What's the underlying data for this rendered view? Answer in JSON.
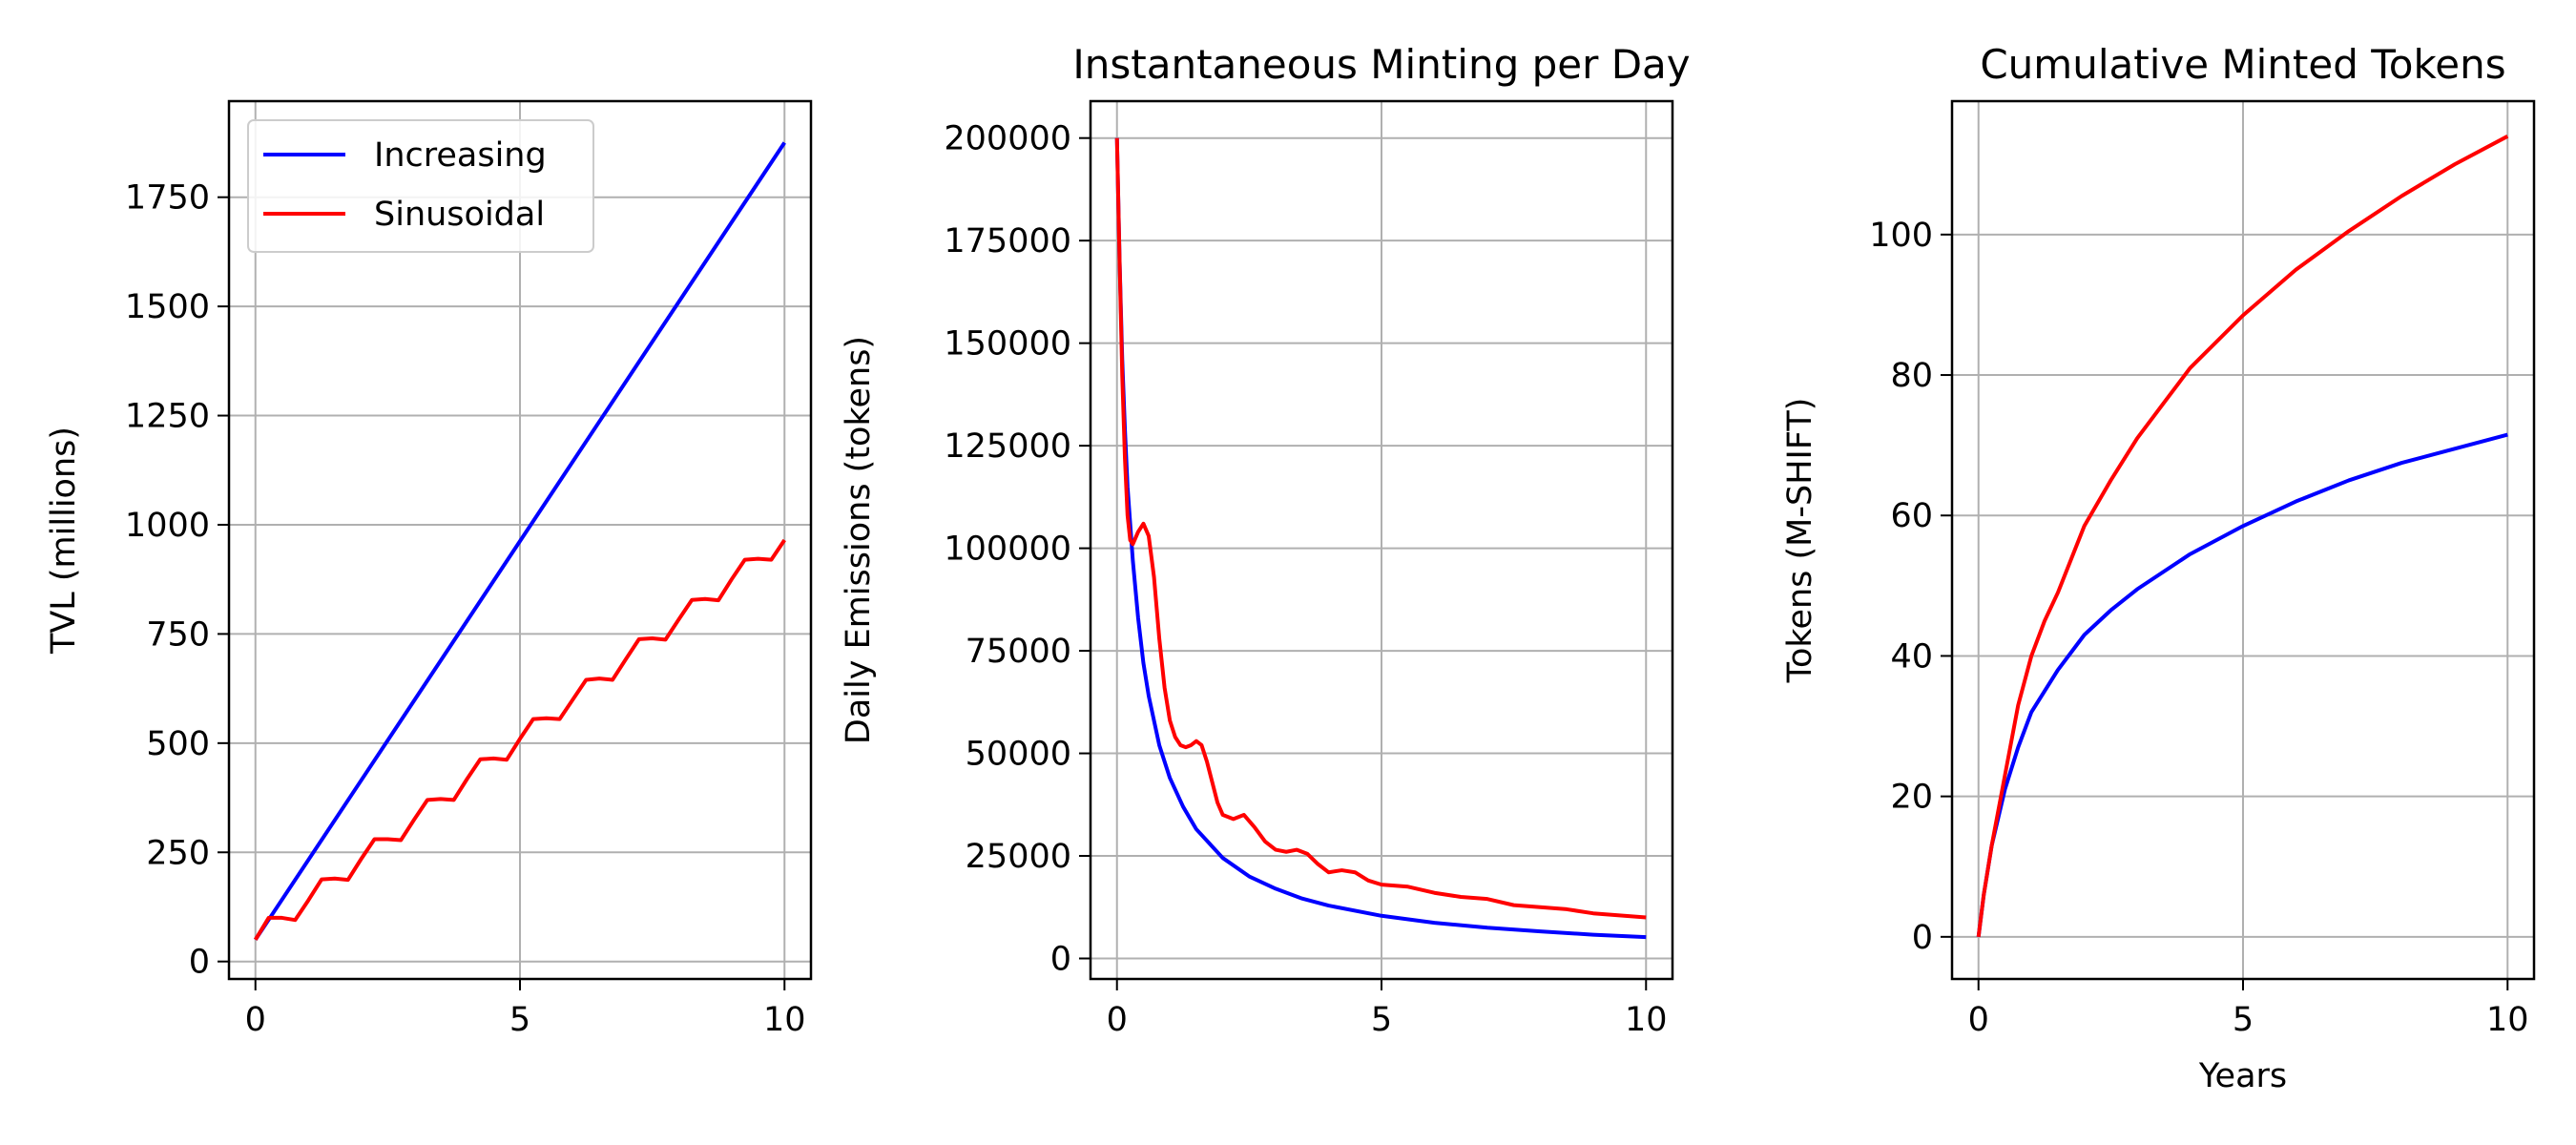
{
  "figure": {
    "background": "#ffffff"
  },
  "chart_data": [
    {
      "type": "line",
      "title": "",
      "xlabel": "",
      "ylabel": "TVL (millions)",
      "xlim": [
        -0.5,
        10.5
      ],
      "ylim": [
        -40,
        1970
      ],
      "xticks": [
        0,
        5,
        10
      ],
      "xtick_labels": [
        "0",
        "5",
        "10"
      ],
      "yticks": [
        0,
        250,
        500,
        750,
        1000,
        1250,
        1500,
        1750
      ],
      "ytick_labels": [
        "0",
        "250",
        "500",
        "750",
        "1000",
        "1250",
        "1500",
        "1750"
      ],
      "grid": true,
      "legend": {
        "location": "upper left",
        "entries": [
          "Increasing",
          "Sinusoidal"
        ]
      },
      "series": [
        {
          "name": "Increasing",
          "color": "#0000ff",
          "x": [
            0,
            10
          ],
          "y": [
            50,
            1875
          ]
        },
        {
          "name": "Sinusoidal",
          "color": "#ff0000",
          "x": [
            0,
            0.25,
            0.5,
            0.75,
            1,
            1.25,
            1.5,
            1.75,
            2,
            2.25,
            2.5,
            2.75,
            3,
            3.25,
            3.5,
            3.75,
            4,
            4.25,
            4.5,
            4.75,
            5,
            5.25,
            5.5,
            5.75,
            6,
            6.25,
            6.5,
            6.75,
            7,
            7.25,
            7.5,
            7.75,
            8,
            8.25,
            8.5,
            8.75,
            9,
            9.25,
            9.5,
            9.75,
            10
          ],
          "y": [
            50,
            100,
            100,
            95,
            140,
            188,
            190,
            187,
            235,
            280,
            280,
            278,
            325,
            370,
            372,
            370,
            418,
            463,
            465,
            462,
            510,
            555,
            557,
            555,
            600,
            645,
            648,
            645,
            692,
            738,
            740,
            737,
            783,
            828,
            830,
            827,
            875,
            920,
            922,
            920,
            965
          ]
        }
      ]
    },
    {
      "type": "line",
      "title": "Instantaneous Minting per Day",
      "xlabel": "",
      "ylabel": "Daily Emissions (tokens)",
      "xlim": [
        -0.5,
        10.5
      ],
      "ylim": [
        -5000,
        209000
      ],
      "xticks": [
        0,
        5,
        10
      ],
      "xtick_labels": [
        "0",
        "5",
        "10"
      ],
      "yticks": [
        0,
        25000,
        50000,
        75000,
        100000,
        125000,
        150000,
        175000,
        200000
      ],
      "ytick_labels": [
        "0",
        "25000",
        "50000",
        "75000",
        "100000",
        "125000",
        "150000",
        "175000",
        "200000"
      ],
      "grid": true,
      "series": [
        {
          "name": "Increasing",
          "color": "#0000ff",
          "x": [
            0,
            0.05,
            0.1,
            0.15,
            0.2,
            0.3,
            0.4,
            0.5,
            0.6,
            0.8,
            1,
            1.25,
            1.5,
            2,
            2.5,
            3,
            3.5,
            4,
            5,
            6,
            7,
            8,
            9,
            10
          ],
          "y": [
            200000,
            170000,
            146000,
            129000,
            115000,
            97000,
            83000,
            72000,
            64000,
            52000,
            44000,
            37000,
            31500,
            24500,
            20000,
            17000,
            14600,
            12900,
            10400,
            8700,
            7500,
            6600,
            5800,
            5200
          ]
        },
        {
          "name": "Sinusoidal",
          "color": "#ff0000",
          "x": [
            0,
            0.05,
            0.1,
            0.15,
            0.2,
            0.25,
            0.3,
            0.4,
            0.5,
            0.6,
            0.7,
            0.8,
            0.9,
            1,
            1.1,
            1.2,
            1.3,
            1.4,
            1.5,
            1.6,
            1.7,
            1.8,
            1.9,
            2,
            2.2,
            2.4,
            2.6,
            2.8,
            3,
            3.2,
            3.4,
            3.6,
            3.8,
            4,
            4.25,
            4.5,
            4.75,
            5,
            5.5,
            6,
            6.5,
            7,
            7.5,
            8,
            8.5,
            9,
            9.5,
            10
          ],
          "y": [
            200000,
            170000,
            142000,
            122000,
            108000,
            102000,
            101000,
            104000,
            106000,
            103000,
            93000,
            78000,
            66000,
            58000,
            54000,
            52000,
            51500,
            52000,
            53000,
            52000,
            48000,
            43000,
            38000,
            35000,
            34000,
            35000,
            32000,
            28500,
            26500,
            26000,
            26500,
            25500,
            23000,
            21000,
            21500,
            21000,
            19000,
            18000,
            17500,
            16000,
            15000,
            14500,
            13000,
            12500,
            12000,
            11000,
            10500,
            10000
          ]
        }
      ]
    },
    {
      "type": "line",
      "title": "Cumulative Minted Tokens",
      "xlabel": "Years",
      "ylabel": "Tokens (M-SHIFT)",
      "xlim": [
        -0.5,
        10.5
      ],
      "ylim": [
        -6,
        119
      ],
      "xticks": [
        0,
        5,
        10
      ],
      "xtick_labels": [
        "0",
        "5",
        "10"
      ],
      "yticks": [
        0,
        20,
        40,
        60,
        80,
        100
      ],
      "ytick_labels": [
        "0",
        "20",
        "40",
        "60",
        "80",
        "100"
      ],
      "grid": true,
      "series": [
        {
          "name": "Increasing",
          "color": "#0000ff",
          "x": [
            0,
            0.1,
            0.25,
            0.5,
            0.75,
            1,
            1.5,
            2,
            2.5,
            3,
            4,
            5,
            6,
            7,
            8,
            9,
            10
          ],
          "y": [
            0,
            6,
            13,
            21,
            27,
            32,
            38,
            43,
            46.5,
            49.5,
            54.5,
            58.5,
            62,
            65,
            67.5,
            69.5,
            71.5
          ]
        },
        {
          "name": "Sinusoidal",
          "color": "#ff0000",
          "x": [
            0,
            0.1,
            0.25,
            0.5,
            0.75,
            1,
            1.25,
            1.5,
            2,
            2.5,
            3,
            3.5,
            4,
            5,
            6,
            7,
            8,
            9,
            10
          ],
          "y": [
            0,
            6,
            13,
            23,
            33,
            40,
            45,
            49,
            58.5,
            65,
            71,
            76,
            81,
            88.5,
            95,
            100.5,
            105.5,
            110,
            114
          ]
        }
      ]
    }
  ]
}
